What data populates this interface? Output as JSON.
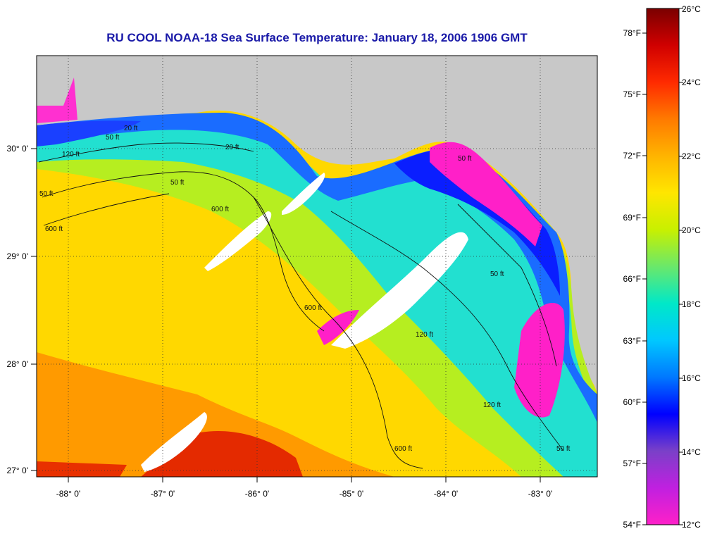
{
  "title": "RU COOL  NOAA-18  Sea Surface Temperature:  January 18, 2006 1906 GMT",
  "map": {
    "longitude_ticks": [
      "-88° 0'",
      "-87° 0'",
      "-86° 0'",
      "-85° 0'",
      "-84° 0'",
      "-83° 0'"
    ],
    "latitude_ticks": [
      "30° 0'",
      "29° 0'",
      "28° 0'",
      "27° 0'"
    ],
    "contour_labels": [
      "50 ft",
      "120 ft",
      "20 ft",
      "50 ft",
      "600 ft",
      "600 ft",
      "600 ft",
      "50 ft",
      "120 ft",
      "120 ft",
      "600 ft",
      "50 ft",
      "50 ft",
      "50 ft",
      "20 ft"
    ],
    "colors": {
      "land": "#c8c8c8",
      "cloud": "#ffffff",
      "title": "#1a1aa8"
    }
  },
  "colorbar": {
    "celsius_labels": [
      "26°C",
      "24°C",
      "22°C",
      "20°C",
      "18°C",
      "16°C",
      "14°C",
      "12°C"
    ],
    "fahrenheit_labels": [
      "78°F",
      "75°F",
      "72°F",
      "69°F",
      "66°F",
      "63°F",
      "60°F",
      "57°F",
      "54°F"
    ],
    "gradient_stops": [
      "#7a0000",
      "#d00000",
      "#ff2a00",
      "#ff7a00",
      "#ffb400",
      "#ffe600",
      "#c8f000",
      "#6ae86a",
      "#00e8c8",
      "#00c8ff",
      "#0078ff",
      "#0000ff",
      "#7a40c8",
      "#c020e0",
      "#ff20c8"
    ]
  }
}
